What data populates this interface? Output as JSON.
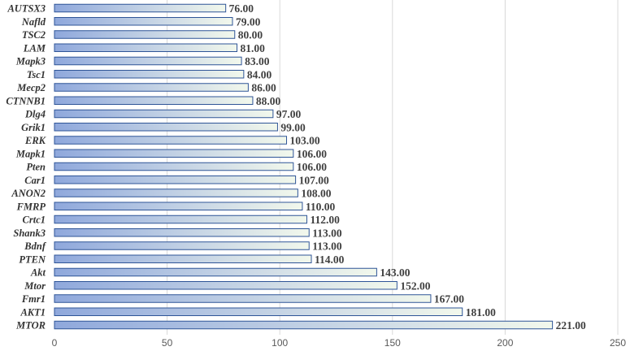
{
  "chart_data": {
    "type": "bar",
    "orientation": "horizontal",
    "categories": [
      "AUTSX3",
      "Nafld",
      "TSC2",
      "LAM",
      "Mapk3",
      "Tsc1",
      "Mecp2",
      "CTNNB1",
      "Dlg4",
      "Grik1",
      "ERK",
      "Mapk1",
      "Pten",
      "Car1",
      "ANON2",
      "FMRP",
      "Crtc1",
      "Shank3",
      "Bdnf",
      "PTEN",
      "Akt",
      "Mtor",
      "Fmr1",
      "AKT1",
      "MTOR"
    ],
    "values": [
      76,
      79,
      80,
      81,
      83,
      84,
      86,
      88,
      97,
      99,
      103,
      106,
      106,
      107,
      108,
      110,
      112,
      113,
      113,
      114,
      143,
      152,
      167,
      181,
      221
    ],
    "value_labels": [
      "76.00",
      "79.00",
      "80.00",
      "81.00",
      "83.00",
      "84.00",
      "86.00",
      "88.00",
      "97.00",
      "99.00",
      "103.00",
      "106.00",
      "106.00",
      "107.00",
      "108.00",
      "110.00",
      "112.00",
      "113.00",
      "113.00",
      "114.00",
      "143.00",
      "152.00",
      "167.00",
      "181.00",
      "221.00"
    ],
    "xticks": [
      "0",
      "50",
      "100",
      "150",
      "200",
      "250"
    ],
    "xlim": [
      0,
      250
    ],
    "title": "",
    "xlabel": "",
    "ylabel": "",
    "grid": "vertical",
    "legend": "none",
    "colors": {
      "bar_start": "#8fa8dc",
      "bar_end": "#f2f8ec",
      "bar_border": "#2f5597",
      "grid": "#d9d9d9"
    }
  }
}
